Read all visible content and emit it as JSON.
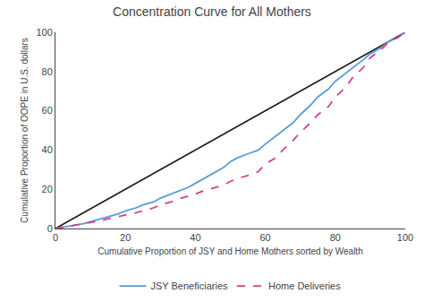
{
  "chart_data": {
    "type": "line",
    "title": "Concentration Curve for All Mothers",
    "x_label": "Cumulative Proportion of JSY and Home Mothers sorted by Wealth",
    "y_label": "Cumulative Proportion of OOPE in U.S. dollars",
    "xlim": [
      0,
      100
    ],
    "ylim": [
      0,
      100
    ],
    "xticks": [
      0,
      20,
      40,
      60,
      80,
      100
    ],
    "yticks": [
      0,
      20,
      40,
      60,
      80,
      100
    ],
    "grid": false,
    "legend": "bottom",
    "series": [
      {
        "color": "#1a1a1a",
        "line_style": "solid",
        "x": [
          0,
          100
        ],
        "values": [
          0,
          100
        ]
      },
      {
        "name": "JSY Beneficiaries",
        "color": "#5b9bd5",
        "line_style": "solid",
        "x": [
          0,
          2,
          5,
          8,
          10,
          13,
          15,
          18,
          20,
          23,
          25,
          28,
          30,
          33,
          35,
          38,
          40,
          42,
          45,
          48,
          50,
          52,
          55,
          58,
          60,
          63,
          65,
          68,
          70,
          73,
          75,
          78,
          80,
          83,
          85,
          88,
          90,
          93,
          95,
          98,
          100
        ],
        "values": [
          0,
          0.5,
          1.5,
          2.5,
          3.5,
          5,
          6,
          7.5,
          9,
          10.5,
          12,
          13.5,
          15.5,
          17.5,
          19,
          21,
          23,
          25,
          28,
          31,
          34,
          36,
          38,
          40,
          43,
          47,
          50,
          54,
          58,
          63,
          67,
          71,
          75,
          79,
          82,
          86,
          89,
          92,
          95,
          97.5,
          100
        ]
      },
      {
        "name": "Home Deliveries",
        "color": "#d04090",
        "line_style": "dashed",
        "x": [
          0,
          2,
          5,
          8,
          10,
          13,
          15,
          18,
          20,
          23,
          25,
          28,
          30,
          33,
          35,
          38,
          40,
          42,
          45,
          48,
          50,
          52,
          55,
          58,
          60,
          63,
          65,
          68,
          70,
          73,
          75,
          78,
          80,
          83,
          85,
          88,
          90,
          93,
          95,
          98,
          100
        ],
        "values": [
          0,
          0.5,
          1.5,
          2.5,
          3,
          4,
          5,
          6,
          7,
          8,
          9,
          10.5,
          12,
          13.5,
          15,
          16.5,
          17.5,
          19,
          20.5,
          22,
          24,
          25.5,
          27,
          29,
          33,
          36,
          40,
          45,
          49,
          54,
          58,
          62,
          67,
          72,
          77,
          82,
          87,
          91,
          94.5,
          97.5,
          100
        ]
      }
    ]
  }
}
